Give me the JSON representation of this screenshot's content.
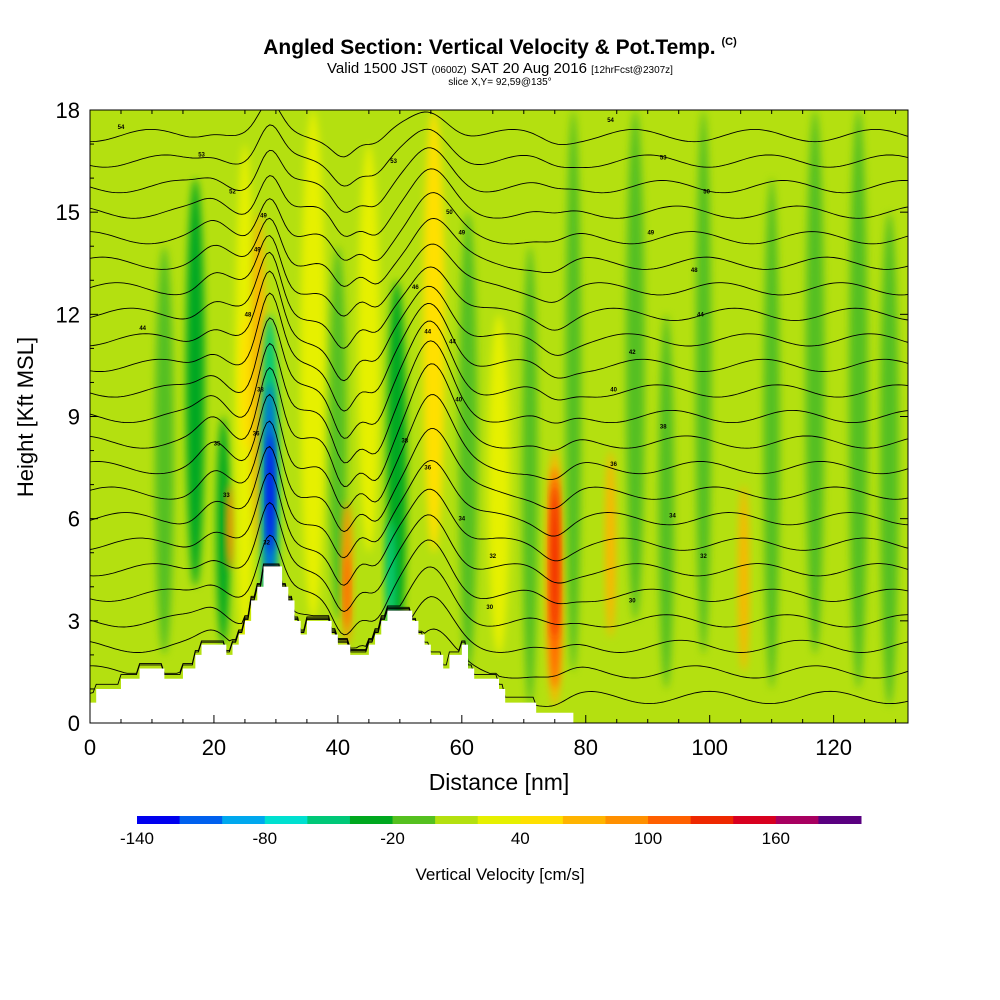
{
  "title": {
    "main": "Angled Section: Vertical Velocity & Pot.Temp.",
    "unit_tag": "(C)",
    "valid_a": "Valid 1500 JST",
    "valid_utc": "(0600Z)",
    "valid_b": "SAT 20 Aug 2016",
    "forecast": "[12hrFcst@2307z]",
    "slice": "slice X,Y= 92,59@135°"
  },
  "chart_data": {
    "type": "heatmap",
    "xlabel": "Distance [nm]",
    "ylabel": "Height [Kft MSL]",
    "xlim": [
      0,
      132
    ],
    "ylim": [
      0,
      18
    ],
    "x_ticks": [
      0,
      20,
      40,
      60,
      80,
      100,
      120
    ],
    "y_ticks": [
      0,
      3,
      6,
      9,
      12,
      15,
      18
    ],
    "colorbar": {
      "label": "Vertical Velocity [cm/s]",
      "tick_labels": [
        "-140",
        "-80",
        "-20",
        "40",
        "100",
        "160"
      ],
      "colors": [
        "#0000ee",
        "#0060ee",
        "#00a8ee",
        "#00e0d0",
        "#00c878",
        "#00a820",
        "#55c020",
        "#b4e010",
        "#e6f000",
        "#ffe000",
        "#ffb400",
        "#ff9000",
        "#ff6000",
        "#ee2800",
        "#d80020",
        "#a80060",
        "#5a0080"
      ]
    },
    "background_velocity": "#b4e010",
    "velocity_bands": [
      {
        "x": 12,
        "w": 3,
        "ytop": 14,
        "ybot": 2,
        "color": "#55c020"
      },
      {
        "x": 17,
        "w": 3,
        "ytop": 16,
        "ybot": 4,
        "color": "#00a820"
      },
      {
        "x": 21.5,
        "w": 2.2,
        "ytop": 9,
        "ybot": 2.3,
        "color": "#00a820"
      },
      {
        "x": 22.6,
        "w": 1.2,
        "ytop": 7,
        "ybot": 4.5,
        "color": "#ff9000"
      },
      {
        "x": 25,
        "w": 3.2,
        "ytop": 17,
        "ybot": 2,
        "color": "#e6f000"
      },
      {
        "x": 25.2,
        "w": 2,
        "ytop": 12,
        "ybot": 8,
        "color": "#ffe000"
      },
      {
        "x": 27.2,
        "w": 2.2,
        "ytop": 15,
        "ybot": 5,
        "color": "#ffb400"
      },
      {
        "x": 29,
        "w": 3,
        "ytop": 12,
        "ybot": 2,
        "color": "#00c878"
      },
      {
        "x": 29,
        "w": 1.8,
        "ytop": 10,
        "ybot": 3.5,
        "color": "#0060ee"
      },
      {
        "x": 29.1,
        "w": 1,
        "ytop": 8.5,
        "ybot": 5,
        "color": "#0000ee"
      },
      {
        "x": 36,
        "w": 4,
        "ytop": 18,
        "ybot": 3,
        "color": "#e6f000"
      },
      {
        "x": 40,
        "w": 2.8,
        "ytop": 14,
        "ybot": 3,
        "color": "#55c020"
      },
      {
        "x": 41.5,
        "w": 1.6,
        "ytop": 6.5,
        "ybot": 2.3,
        "color": "#ff9000"
      },
      {
        "x": 41.5,
        "w": 0.8,
        "ytop": 5,
        "ybot": 2.8,
        "color": "#ff6000"
      },
      {
        "x": 45,
        "w": 3.5,
        "ytop": 17,
        "ybot": 5,
        "color": "#e6f000"
      },
      {
        "x": 49.5,
        "w": 3.2,
        "ytop": 13,
        "ybot": 2,
        "color": "#00a820"
      },
      {
        "x": 48.5,
        "w": 1.6,
        "ytop": 6,
        "ybot": 2.5,
        "color": "#00c878"
      },
      {
        "x": 55.5,
        "w": 3.5,
        "ytop": 18,
        "ybot": 5,
        "color": "#ffe000"
      },
      {
        "x": 61,
        "w": 3,
        "ytop": 15,
        "ybot": 1.5,
        "color": "#55c020"
      },
      {
        "x": 66,
        "w": 3.5,
        "ytop": 12,
        "ybot": 2,
        "color": "#e6f000"
      },
      {
        "x": 71,
        "w": 2.5,
        "ytop": 14,
        "ybot": 0.5,
        "color": "#55c020"
      },
      {
        "x": 75,
        "w": 2.6,
        "ytop": 8,
        "ybot": 0.5,
        "color": "#ffb400"
      },
      {
        "x": 75,
        "w": 1.9,
        "ytop": 7.5,
        "ybot": 1,
        "color": "#ff6000"
      },
      {
        "x": 75,
        "w": 1.2,
        "ytop": 7,
        "ybot": 2.5,
        "color": "#ee2800"
      },
      {
        "x": 78,
        "w": 2.5,
        "ytop": 18,
        "ybot": 1.5,
        "color": "#55c020"
      },
      {
        "x": 84,
        "w": 1.6,
        "ytop": 8,
        "ybot": 2.5,
        "color": "#ffb400"
      },
      {
        "x": 88,
        "w": 3,
        "ytop": 18,
        "ybot": 3,
        "color": "#55c020"
      },
      {
        "x": 93,
        "w": 2.5,
        "ytop": 12,
        "ybot": 1,
        "color": "#55c020"
      },
      {
        "x": 99,
        "w": 2.5,
        "ytop": 18,
        "ybot": 2,
        "color": "#55c020"
      },
      {
        "x": 105.5,
        "w": 1.6,
        "ytop": 7,
        "ybot": 1.5,
        "color": "#ffb400"
      },
      {
        "x": 110,
        "w": 2.6,
        "ytop": 16,
        "ybot": 1,
        "color": "#55c020"
      },
      {
        "x": 117,
        "w": 3,
        "ytop": 18,
        "ybot": 2,
        "color": "#55c020"
      },
      {
        "x": 124,
        "w": 3,
        "ytop": 18,
        "ybot": 1,
        "color": "#55c020"
      },
      {
        "x": 129,
        "w": 3,
        "ytop": 15,
        "ybot": 0.5,
        "color": "#55c020"
      }
    ],
    "terrain_kft": [
      [
        0,
        0.6
      ],
      [
        1,
        0.6
      ],
      [
        1,
        1.0
      ],
      [
        5,
        1.0
      ],
      [
        5,
        1.3
      ],
      [
        8,
        1.3
      ],
      [
        8,
        1.6
      ],
      [
        12,
        1.6
      ],
      [
        12,
        1.3
      ],
      [
        15,
        1.3
      ],
      [
        15,
        1.6
      ],
      [
        17,
        1.6
      ],
      [
        17,
        2.0
      ],
      [
        18,
        2.0
      ],
      [
        18,
        2.3
      ],
      [
        22,
        2.3
      ],
      [
        22,
        2.0
      ],
      [
        23,
        2.0
      ],
      [
        23,
        2.3
      ],
      [
        24,
        2.3
      ],
      [
        24,
        2.6
      ],
      [
        25,
        2.6
      ],
      [
        25,
        3.0
      ],
      [
        26,
        3.0
      ],
      [
        26,
        3.6
      ],
      [
        27,
        3.6
      ],
      [
        27,
        4.0
      ],
      [
        28,
        4.0
      ],
      [
        28,
        4.6
      ],
      [
        31,
        4.6
      ],
      [
        31,
        4.0
      ],
      [
        32,
        4.0
      ],
      [
        32,
        3.6
      ],
      [
        33,
        3.6
      ],
      [
        33,
        3.0
      ],
      [
        34,
        3.0
      ],
      [
        34,
        2.6
      ],
      [
        35,
        2.6
      ],
      [
        35,
        3.0
      ],
      [
        39,
        3.0
      ],
      [
        39,
        2.6
      ],
      [
        40,
        2.6
      ],
      [
        40,
        2.3
      ],
      [
        42,
        2.3
      ],
      [
        42,
        2.0
      ],
      [
        45,
        2.0
      ],
      [
        45,
        2.3
      ],
      [
        46,
        2.3
      ],
      [
        46,
        2.6
      ],
      [
        47,
        2.6
      ],
      [
        47,
        3.0
      ],
      [
        48,
        3.0
      ],
      [
        48,
        3.3
      ],
      [
        52,
        3.3
      ],
      [
        52,
        3.0
      ],
      [
        53,
        3.0
      ],
      [
        53,
        2.6
      ],
      [
        54,
        2.6
      ],
      [
        54,
        2.3
      ],
      [
        55,
        2.3
      ],
      [
        55,
        2.0
      ],
      [
        57,
        2.0
      ],
      [
        57,
        1.6
      ],
      [
        58,
        1.6
      ],
      [
        58,
        2.0
      ],
      [
        60,
        2.0
      ],
      [
        60,
        2.3
      ],
      [
        61,
        2.3
      ],
      [
        61,
        1.6
      ],
      [
        62,
        1.6
      ],
      [
        62,
        1.3
      ],
      [
        66,
        1.3
      ],
      [
        66,
        1.0
      ],
      [
        67,
        1.0
      ],
      [
        67,
        0.6
      ],
      [
        72,
        0.6
      ],
      [
        72,
        0.3
      ],
      [
        78,
        0.3
      ],
      [
        78,
        0.0
      ]
    ],
    "isentropes": {
      "levels_kft": [
        0.75,
        1.5,
        2.25,
        3,
        3.75,
        4.5,
        5.25,
        6,
        6.75,
        7.5,
        8.25,
        9,
        9.75,
        10.5,
        11.25,
        12,
        12.75,
        13.5,
        14.25,
        15,
        15.75,
        16.5,
        17.25
      ],
      "wave_crests": [
        {
          "x": 29,
          "width": 2.5,
          "amp_kft": 2.4
        },
        {
          "x": 41,
          "width": 2.5,
          "amp_kft": -1.4
        },
        {
          "x": 55,
          "width": 4.5,
          "amp_kft": 2.2
        },
        {
          "x": 46,
          "width": 2.5,
          "amp_kft": -1.0
        },
        {
          "x": 75,
          "width": 3.0,
          "amp_kft": -0.4
        },
        {
          "x": 20,
          "width": 3.0,
          "amp_kft": 0.6
        }
      ]
    },
    "contour_labels": [
      {
        "x": 5,
        "y": 17.5,
        "text": "54"
      },
      {
        "x": 18,
        "y": 16.7,
        "text": "53"
      },
      {
        "x": 23,
        "y": 15.6,
        "text": "52"
      },
      {
        "x": 28,
        "y": 14.9,
        "text": "49"
      },
      {
        "x": 27,
        "y": 13.9,
        "text": "49"
      },
      {
        "x": 25.5,
        "y": 12,
        "text": "48"
      },
      {
        "x": 8.5,
        "y": 11.6,
        "text": "44"
      },
      {
        "x": 27.5,
        "y": 9.8,
        "text": "38"
      },
      {
        "x": 26.8,
        "y": 8.5,
        "text": "36"
      },
      {
        "x": 20.5,
        "y": 8.2,
        "text": "35"
      },
      {
        "x": 22,
        "y": 6.7,
        "text": "33"
      },
      {
        "x": 28.5,
        "y": 5.3,
        "text": "32"
      },
      {
        "x": 49,
        "y": 16.5,
        "text": "53"
      },
      {
        "x": 58,
        "y": 15,
        "text": "50"
      },
      {
        "x": 60,
        "y": 14.4,
        "text": "49"
      },
      {
        "x": 52.5,
        "y": 12.8,
        "text": "46"
      },
      {
        "x": 54.5,
        "y": 11.5,
        "text": "44"
      },
      {
        "x": 58.5,
        "y": 11.2,
        "text": "44"
      },
      {
        "x": 59.5,
        "y": 9.5,
        "text": "40"
      },
      {
        "x": 50.8,
        "y": 8.3,
        "text": "38"
      },
      {
        "x": 54.5,
        "y": 7.5,
        "text": "36"
      },
      {
        "x": 60,
        "y": 6,
        "text": "34"
      },
      {
        "x": 65,
        "y": 4.9,
        "text": "32"
      },
      {
        "x": 64.5,
        "y": 3.4,
        "text": "30"
      },
      {
        "x": 84,
        "y": 17.7,
        "text": "54"
      },
      {
        "x": 92.5,
        "y": 16.6,
        "text": "53"
      },
      {
        "x": 99.5,
        "y": 15.6,
        "text": "50"
      },
      {
        "x": 90.5,
        "y": 14.4,
        "text": "49"
      },
      {
        "x": 97.5,
        "y": 13.3,
        "text": "48"
      },
      {
        "x": 98.5,
        "y": 12,
        "text": "44"
      },
      {
        "x": 87.5,
        "y": 10.9,
        "text": "42"
      },
      {
        "x": 84.5,
        "y": 9.8,
        "text": "40"
      },
      {
        "x": 92.5,
        "y": 8.7,
        "text": "38"
      },
      {
        "x": 84.5,
        "y": 7.6,
        "text": "36"
      },
      {
        "x": 94,
        "y": 6.1,
        "text": "34"
      },
      {
        "x": 99,
        "y": 4.9,
        "text": "32"
      },
      {
        "x": 87.5,
        "y": 3.6,
        "text": "30"
      }
    ]
  }
}
